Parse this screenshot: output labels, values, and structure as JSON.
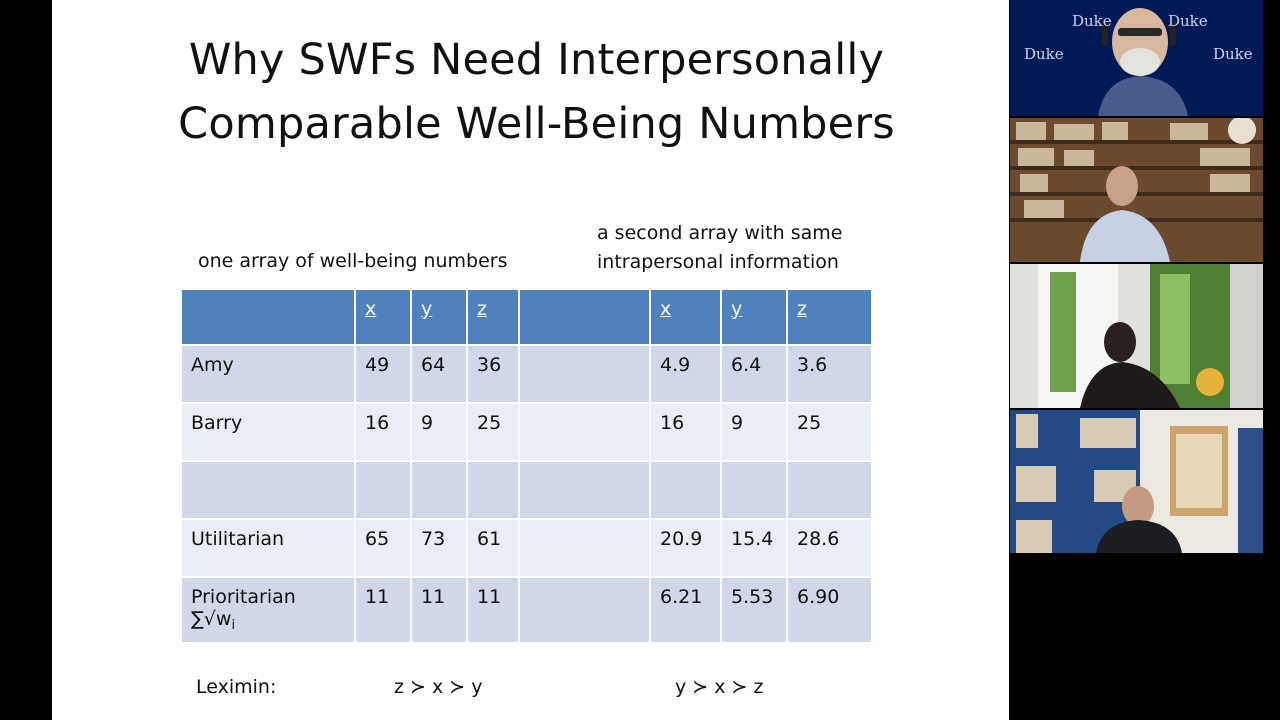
{
  "slide": {
    "title_line1": "Why SWFs Need Interpersonally",
    "title_line2": "Comparable Well-Being Numbers",
    "caption_left": "one array of well-being numbers",
    "caption_right_line1": "a second array with same",
    "caption_right_line2": "intrapersonal information",
    "table": {
      "headers": [
        "",
        "x",
        "y",
        "z",
        "",
        "x",
        "y",
        "z"
      ],
      "rows": [
        [
          "Amy",
          "49",
          "64",
          "36",
          "",
          "4.9",
          "6.4",
          "3.6"
        ],
        [
          "Barry",
          "16",
          "9",
          "25",
          "",
          "16",
          "9",
          "25"
        ],
        [
          "",
          "",
          "",
          "",
          "",
          "",
          "",
          ""
        ],
        [
          "Utilitarian",
          " 65",
          "73",
          "61",
          "",
          "20.9",
          "15.4",
          "28.6"
        ],
        [
          "Prioritarian",
          "11",
          "11",
          "11",
          "",
          "6.21",
          "5.53",
          "6.90"
        ]
      ],
      "prioritarian_formula": "∑√w",
      "prioritarian_subscript": "i"
    },
    "leximin_label": "Leximin:",
    "leximin_left": "z ≻ x ≻ y",
    "leximin_right": "y ≻ x ≻ z"
  },
  "participants": {
    "tile1_background_text": [
      "Duke",
      "Duke",
      "Duke",
      "Duke"
    ],
    "colors": {
      "duke_blue": "#001a57",
      "table_header": "#4f81bd",
      "row_dark": "#d0d8e8",
      "row_light": "#e9edf4"
    }
  }
}
